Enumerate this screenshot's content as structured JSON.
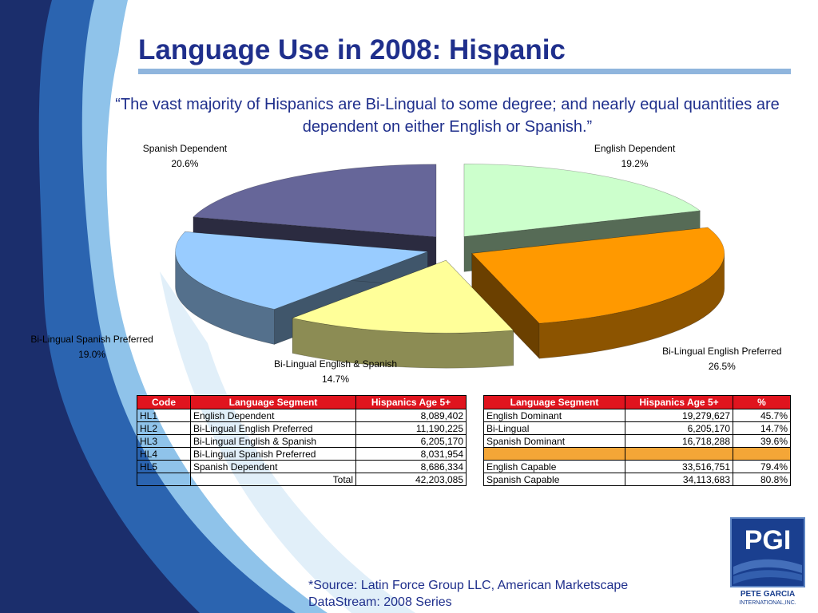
{
  "slide": {
    "title": "Language Use in 2008: Hispanic",
    "quote": "“The vast majority of Hispanics are Bi-Lingual to some degree; and nearly equal quantities are dependent on either English or Spanish.”",
    "source_line1": "*Source: Latin Force Group LLC, American Marketscape",
    "source_line2": "DataStream: 2008 Series",
    "logo_text": "PGI",
    "logo_name1": "PETE GARCIA",
    "logo_name2": "INTERNATIONAL,INC."
  },
  "chart_data": {
    "type": "pie",
    "title": "",
    "categories": [
      "English Dependent",
      "Bi-Lingual English Preferred",
      "Bi-Lingual English & Spanish",
      "Bi-Lingual Spanish Preferred",
      "Spanish Dependent"
    ],
    "values": [
      19.2,
      26.5,
      14.7,
      19.0,
      20.6
    ],
    "labels": [
      "19.2%",
      "26.5%",
      "14.7%",
      "19.0%",
      "20.6%"
    ],
    "colors": [
      "#ccffcc",
      "#ff9900",
      "#ffff99",
      "#99ccff",
      "#666699"
    ],
    "style": "3d-exploded"
  },
  "table1": {
    "headers": [
      "Code",
      "Language Segment",
      "Hispanics Age 5+"
    ],
    "rows": [
      [
        "HL1",
        "English Dependent",
        "8,089,402"
      ],
      [
        "HL2",
        "Bi-Lingual English Preferred",
        "11,190,225"
      ],
      [
        "HL3",
        "Bi-Lingual English & Spanish",
        "6,205,170"
      ],
      [
        "HL4",
        "Bi-Lingual Spanish Preferred",
        "8,031,954"
      ],
      [
        "HL5",
        "Spanish Dependent",
        "8,686,334"
      ]
    ],
    "total_label": "Total",
    "total_value": "42,203,085"
  },
  "table2": {
    "headers": [
      "Language Segment",
      "Hispanics Age 5+",
      "%"
    ],
    "rows": [
      [
        "English Dominant",
        "19,279,627",
        "45.7%"
      ],
      [
        "Bi-Lingual",
        "6,205,170",
        "14.7%"
      ],
      [
        "Spanish Dominant",
        "16,718,288",
        "39.6%"
      ],
      [
        "",
        "",
        ""
      ],
      [
        "English Capable",
        "33,516,751",
        "79.4%"
      ],
      [
        "Spanish Capable",
        "34,113,683",
        "80.8%"
      ]
    ]
  }
}
